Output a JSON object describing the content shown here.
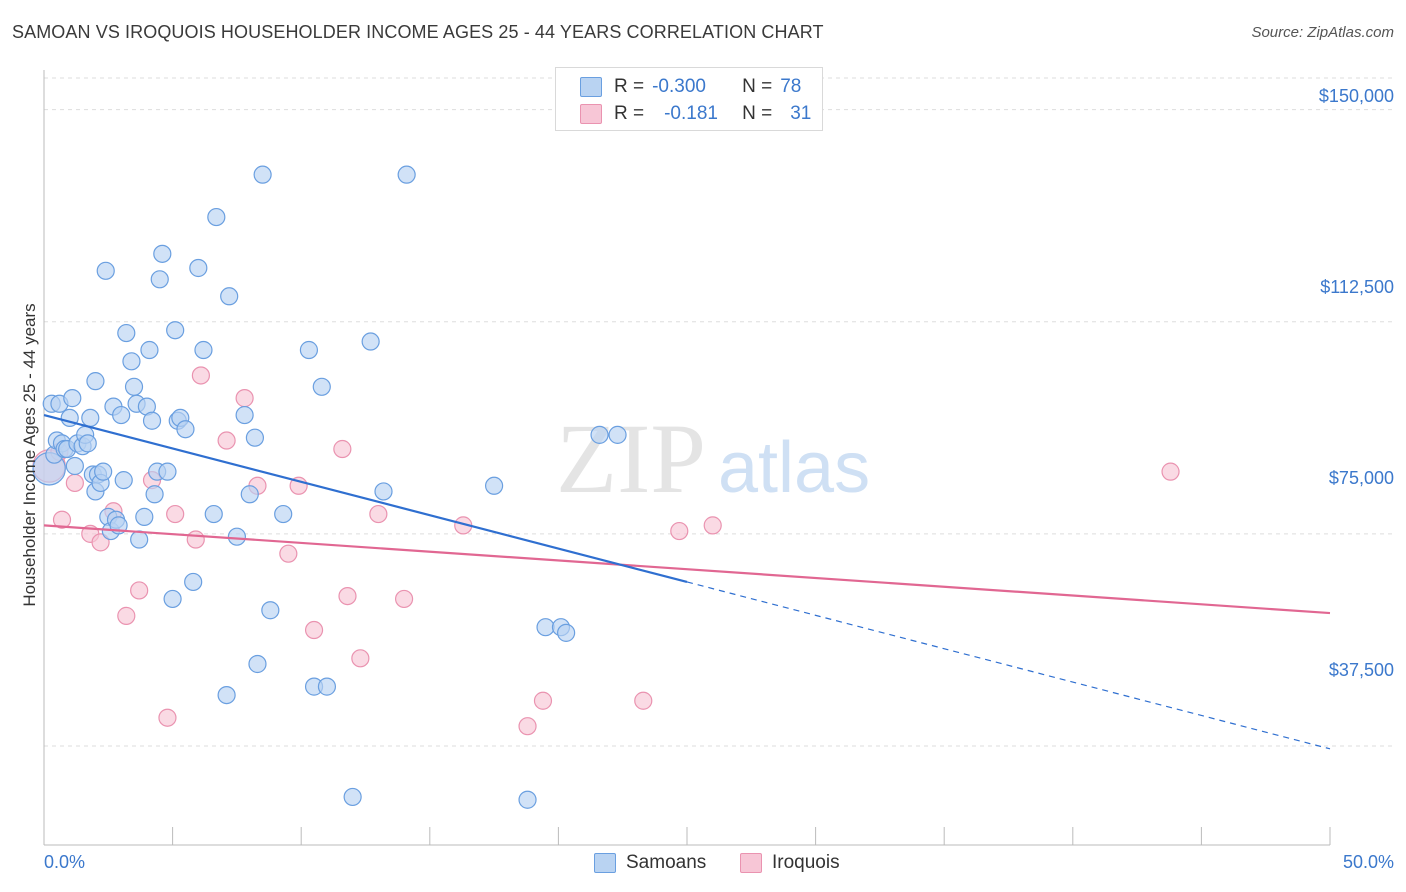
{
  "header": {
    "title": "SAMOAN VS IROQUOIS HOUSEHOLDER INCOME AGES 25 - 44 YEARS CORRELATION CHART",
    "source": "Source: ZipAtlas.com"
  },
  "legend": {
    "samoans": {
      "r_label": "R =",
      "r_value": "-0.300",
      "n_label": "N =",
      "n_value": "78"
    },
    "iroquois": {
      "r_label": "R =",
      "r_value": "-0.181",
      "n_label": "N =",
      "n_value": "31"
    }
  },
  "bottom_legend": {
    "samoans": "Samoans",
    "iroquois": "Iroquois"
  },
  "watermark": {
    "zip": "ZIP",
    "atlas": "atlas"
  },
  "colors": {
    "samoans_fill": "#b9d3f2",
    "samoans_stroke": "#6a9fe0",
    "samoans_line": "#2f6fd0",
    "iroquois_fill": "#f7c6d6",
    "iroquois_stroke": "#ea93b0",
    "iroquois_line": "#e16792",
    "axis_label": "#3b78cc",
    "grid": "#dddddd"
  },
  "chart_data": {
    "type": "scatter",
    "title": "SAMOAN VS IROQUOIS HOUSEHOLDER INCOME AGES 25 - 44 YEARS CORRELATION CHART",
    "xlabel": "",
    "ylabel": "Householder Income Ages 25 - 44 years",
    "xlim": [
      0,
      50
    ],
    "ylim": [
      20000,
      157000
    ],
    "x_tick_labels": {
      "min": "0.0%",
      "max": "50.0%"
    },
    "y_ticks": [
      {
        "value": 37500,
        "label": "$37,500"
      },
      {
        "value": 75000,
        "label": "$75,000"
      },
      {
        "value": 112500,
        "label": "$112,500"
      },
      {
        "value": 150000,
        "label": "$150,000"
      }
    ],
    "series": [
      {
        "name": "Samoans",
        "points": [
          [
            0.2,
            86500,
            1.9
          ],
          [
            0.3,
            98000,
            1.0
          ],
          [
            0.4,
            89000,
            1.0
          ],
          [
            0.5,
            91500,
            1.0
          ],
          [
            0.6,
            98000,
            1.0
          ],
          [
            0.7,
            91000,
            1.0
          ],
          [
            0.8,
            90000,
            1.0
          ],
          [
            0.9,
            90000,
            1.0
          ],
          [
            1.0,
            95500,
            1.0
          ],
          [
            1.1,
            99000,
            1.0
          ],
          [
            1.2,
            87000,
            1.0
          ],
          [
            1.3,
            91000,
            1.0
          ],
          [
            1.5,
            90500,
            1.0
          ],
          [
            1.6,
            92500,
            1.0
          ],
          [
            1.7,
            91000,
            1.0
          ],
          [
            1.8,
            95500,
            1.0
          ],
          [
            1.9,
            85500,
            1.0
          ],
          [
            2.0,
            82500,
            1.0
          ],
          [
            2.1,
            85500,
            1.0
          ],
          [
            2.0,
            102000,
            1.0
          ],
          [
            2.2,
            84000,
            1.0
          ],
          [
            2.3,
            86000,
            1.0
          ],
          [
            2.4,
            121500,
            1.0
          ],
          [
            2.5,
            78000,
            1.0
          ],
          [
            2.6,
            75500,
            1.0
          ],
          [
            2.7,
            97500,
            1.0
          ],
          [
            2.8,
            77500,
            1.0
          ],
          [
            2.9,
            76500,
            1.0
          ],
          [
            3.0,
            96000,
            1.0
          ],
          [
            3.1,
            84500,
            1.0
          ],
          [
            3.2,
            110500,
            1.0
          ],
          [
            3.4,
            105500,
            1.0
          ],
          [
            3.5,
            101000,
            1.0
          ],
          [
            3.6,
            98000,
            1.0
          ],
          [
            3.7,
            74000,
            1.0
          ],
          [
            3.9,
            78000,
            1.0
          ],
          [
            4.0,
            97500,
            1.0
          ],
          [
            4.1,
            107500,
            1.0
          ],
          [
            4.2,
            95000,
            1.0
          ],
          [
            4.3,
            82000,
            1.0
          ],
          [
            4.4,
            86000,
            1.0
          ],
          [
            4.5,
            120000,
            1.0
          ],
          [
            4.6,
            124500,
            1.0
          ],
          [
            4.8,
            86000,
            1.0
          ],
          [
            5.0,
            63500,
            1.0
          ],
          [
            5.1,
            111000,
            1.0
          ],
          [
            5.2,
            95000,
            1.0
          ],
          [
            5.3,
            95500,
            1.0
          ],
          [
            5.5,
            93500,
            1.0
          ],
          [
            5.8,
            66500,
            1.0
          ],
          [
            6.0,
            122000,
            1.0
          ],
          [
            6.2,
            107500,
            1.0
          ],
          [
            6.6,
            78500,
            1.0
          ],
          [
            6.7,
            131000,
            1.0
          ],
          [
            7.1,
            46500,
            1.0
          ],
          [
            7.2,
            117000,
            1.0
          ],
          [
            7.5,
            74500,
            1.0
          ],
          [
            7.8,
            96000,
            1.0
          ],
          [
            8.0,
            82000,
            1.0
          ],
          [
            8.2,
            92000,
            1.0
          ],
          [
            8.3,
            52000,
            1.0
          ],
          [
            8.5,
            138500,
            1.0
          ],
          [
            8.8,
            61500,
            1.0
          ],
          [
            9.3,
            78500,
            1.0
          ],
          [
            10.3,
            107500,
            1.0
          ],
          [
            10.5,
            48000,
            1.0
          ],
          [
            10.8,
            101000,
            1.0
          ],
          [
            11.0,
            48000,
            1.0
          ],
          [
            12.0,
            28500,
            1.0
          ],
          [
            12.7,
            109000,
            1.0
          ],
          [
            13.2,
            82500,
            1.0
          ],
          [
            14.1,
            138500,
            1.0
          ],
          [
            17.5,
            83500,
            1.0
          ],
          [
            18.8,
            28000,
            1.0
          ],
          [
            19.5,
            58500,
            1.0
          ],
          [
            20.1,
            58500,
            1.0
          ],
          [
            20.3,
            57500,
            1.0
          ],
          [
            21.6,
            92500,
            1.0
          ],
          [
            22.3,
            92500,
            1.0
          ]
        ],
        "trend": {
          "x": [
            0,
            25
          ],
          "y": [
            96000,
            66500
          ]
        },
        "trend_dashed": {
          "x": [
            25,
            50
          ],
          "y": [
            66500,
            37000
          ]
        }
      },
      {
        "name": "Iroquois",
        "points": [
          [
            0.2,
            87000,
            1.9
          ],
          [
            0.6,
            89500,
            1.0
          ],
          [
            0.7,
            77500,
            1.0
          ],
          [
            1.2,
            84000,
            1.0
          ],
          [
            1.8,
            75000,
            1.0
          ],
          [
            2.2,
            73500,
            1.0
          ],
          [
            2.7,
            79000,
            1.0
          ],
          [
            3.2,
            60500,
            1.0
          ],
          [
            3.7,
            65000,
            1.0
          ],
          [
            4.2,
            84500,
            1.0
          ],
          [
            4.8,
            42500,
            1.0
          ],
          [
            5.1,
            78500,
            1.0
          ],
          [
            5.9,
            74000,
            1.0
          ],
          [
            6.1,
            103000,
            1.0
          ],
          [
            7.1,
            91500,
            1.0
          ],
          [
            7.8,
            99000,
            1.0
          ],
          [
            8.3,
            83500,
            1.0
          ],
          [
            9.5,
            71500,
            1.0
          ],
          [
            9.9,
            83500,
            1.0
          ],
          [
            10.5,
            58000,
            1.0
          ],
          [
            11.6,
            90000,
            1.0
          ],
          [
            11.8,
            64000,
            1.0
          ],
          [
            12.3,
            53000,
            1.0
          ],
          [
            13.0,
            78500,
            1.0
          ],
          [
            14.0,
            63500,
            1.0
          ],
          [
            16.3,
            76500,
            1.0
          ],
          [
            18.8,
            41000,
            1.0
          ],
          [
            19.4,
            45500,
            1.0
          ],
          [
            23.3,
            45500,
            1.0
          ],
          [
            24.7,
            75500,
            1.0
          ],
          [
            26.0,
            76500,
            1.0
          ],
          [
            43.8,
            86000,
            1.0
          ]
        ],
        "trend": {
          "x": [
            0,
            50
          ],
          "y": [
            76500,
            61000
          ]
        }
      }
    ]
  }
}
